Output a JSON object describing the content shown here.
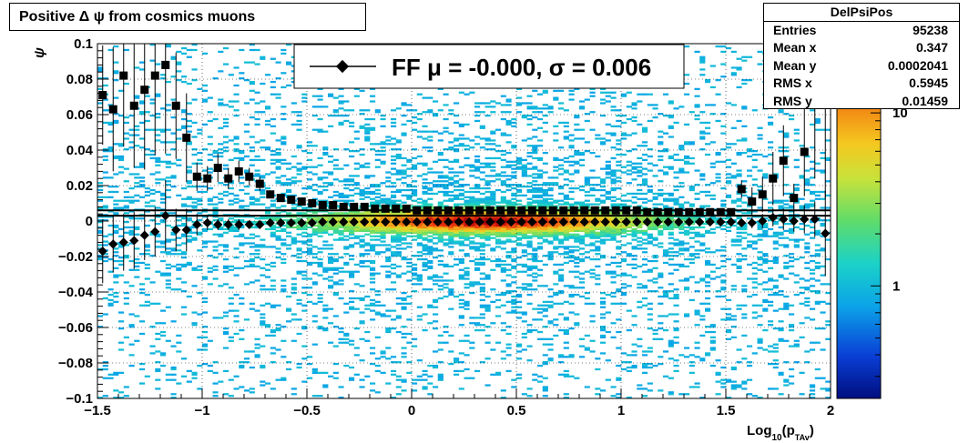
{
  "chart_data": {
    "type": "heatmap",
    "title": "Positive Δ ψ from cosmics muons",
    "xlabel_main": "Log",
    "xlabel_sub1": "10",
    "xlabel_p": "(p",
    "xlabel_sub2": "TAv",
    "xlabel_end": ")",
    "ylabel": "ψ",
    "xlim": [
      -1.5,
      2.0
    ],
    "ylim": [
      -0.1,
      0.1
    ],
    "x_ticks": [
      "−1.5",
      "−1",
      "−0.5",
      "0",
      "0.5",
      "1",
      "1.5",
      "2"
    ],
    "x_tick_values": [
      -1.5,
      -1.0,
      -0.5,
      0.0,
      0.5,
      1.0,
      1.5,
      2.0
    ],
    "y_ticks": [
      "−0.1",
      "−0.08",
      "−0.06",
      "−0.04",
      "−0.02",
      "0",
      "0.02",
      "0.04",
      "0.06",
      "0.08",
      "0.1"
    ],
    "y_tick_values": [
      -0.1,
      -0.08,
      -0.06,
      -0.04,
      -0.02,
      0.0,
      0.02,
      0.04,
      0.06,
      0.08,
      0.1
    ],
    "z_scale": "log",
    "z_ticks": [
      "1",
      "10"
    ],
    "z_tick_values": [
      1,
      10
    ],
    "grid": true,
    "legend": {
      "entry_text": "FF μ = -0.000, σ =   0.006",
      "placement": "top-center"
    },
    "stats": {
      "name": "DelPsiPos",
      "rows": [
        {
          "label": "Entries",
          "value": "95238"
        },
        {
          "label": "Mean x",
          "value": "0.347"
        },
        {
          "label": "Mean y",
          "value": "0.0002041"
        },
        {
          "label": "RMS x",
          "value": "0.5945"
        },
        {
          "label": "RMS y",
          "value": "0.01459"
        }
      ]
    },
    "series": [
      {
        "marker": "diamond",
        "x": [
          -1.475,
          -1.425,
          -1.375,
          -1.325,
          -1.275,
          -1.225,
          -1.175,
          -1.125,
          -1.075,
          -1.025,
          -0.975,
          -0.925,
          -0.875,
          -0.825,
          -0.775,
          -0.725,
          -0.675,
          -0.625,
          -0.575,
          -0.525,
          -0.475,
          -0.425,
          -0.375,
          -0.325,
          -0.275,
          -0.225,
          -0.175,
          -0.125,
          -0.075,
          -0.025,
          0.025,
          0.075,
          0.125,
          0.175,
          0.225,
          0.275,
          0.325,
          0.375,
          0.425,
          0.475,
          0.525,
          0.575,
          0.625,
          0.675,
          0.725,
          0.775,
          0.825,
          0.875,
          0.925,
          0.975,
          1.025,
          1.075,
          1.125,
          1.175,
          1.225,
          1.275,
          1.325,
          1.375,
          1.425,
          1.475,
          1.525,
          1.575,
          1.625,
          1.675,
          1.725,
          1.775,
          1.825,
          1.875,
          1.925,
          1.975
        ],
        "y": [
          -0.017,
          -0.013,
          -0.012,
          -0.011,
          -0.008,
          -0.006,
          0.003,
          -0.005,
          -0.005,
          -0.002,
          -0.001,
          -0.002,
          -0.002,
          -0.002,
          -0.002,
          -0.002,
          -0.001,
          -0.001,
          -0.001,
          -0.001,
          -0.001,
          -0.0005,
          -0.0005,
          -0.0005,
          -0.0005,
          -0.0005,
          -0.0005,
          -0.0005,
          -0.0005,
          -0.0005,
          -0.0005,
          -0.0005,
          -0.0005,
          -0.0005,
          -0.0005,
          -0.0005,
          -0.0005,
          -0.0005,
          -0.0005,
          -0.0005,
          -0.0005,
          -0.0005,
          -0.0005,
          -0.0005,
          -0.0005,
          -0.0005,
          -0.0005,
          -0.0005,
          -0.0005,
          -0.0005,
          -0.0005,
          -0.0005,
          -0.0005,
          -0.0005,
          -0.0005,
          -0.0005,
          -0.0005,
          -0.0005,
          -0.0005,
          -0.0005,
          -0.0005,
          -0.001,
          -0.001,
          0.0,
          0.002,
          0.001,
          0.0,
          0.001,
          0.001,
          -0.007
        ],
        "err": [
          0.018,
          0.016,
          0.016,
          0.016,
          0.014,
          0.014,
          0.02,
          0.012,
          0.012,
          0.006,
          0.004,
          0.003,
          0.003,
          0.003,
          0.002,
          0.002,
          0.001,
          0.001,
          0.001,
          0.001,
          0.001,
          0.001,
          0.001,
          0.001,
          0.001,
          0.001,
          0.001,
          0.001,
          0.001,
          0.001,
          0.001,
          0.001,
          0.001,
          0.001,
          0.001,
          0.001,
          0.001,
          0.001,
          0.001,
          0.001,
          0.001,
          0.001,
          0.001,
          0.001,
          0.001,
          0.001,
          0.001,
          0.001,
          0.001,
          0.001,
          0.001,
          0.001,
          0.001,
          0.001,
          0.001,
          0.001,
          0.001,
          0.001,
          0.001,
          0.001,
          0.001,
          0.002,
          0.003,
          0.004,
          0.005,
          0.006,
          0.006,
          0.008,
          0.01,
          0.024
        ]
      },
      {
        "marker": "square",
        "x": [
          -1.475,
          -1.425,
          -1.375,
          -1.325,
          -1.275,
          -1.225,
          -1.175,
          -1.125,
          -1.075,
          -1.025,
          -0.975,
          -0.925,
          -0.875,
          -0.825,
          -0.775,
          -0.725,
          -0.675,
          -0.625,
          -0.575,
          -0.525,
          -0.475,
          -0.425,
          -0.375,
          -0.325,
          -0.275,
          -0.225,
          -0.175,
          -0.125,
          -0.075,
          -0.025,
          0.025,
          0.075,
          0.125,
          0.175,
          0.225,
          0.275,
          0.325,
          0.375,
          0.425,
          0.475,
          0.525,
          0.575,
          0.625,
          0.675,
          0.725,
          0.775,
          0.825,
          0.875,
          0.925,
          0.975,
          1.025,
          1.075,
          1.125,
          1.175,
          1.225,
          1.275,
          1.325,
          1.375,
          1.425,
          1.475,
          1.525,
          1.575,
          1.625,
          1.675,
          1.725,
          1.775,
          1.825,
          1.875,
          1.925,
          1.975
        ],
        "y": [
          0.071,
          0.063,
          0.082,
          0.065,
          0.074,
          0.082,
          0.088,
          0.065,
          0.047,
          0.025,
          0.024,
          0.03,
          0.024,
          0.028,
          0.025,
          0.021,
          0.015,
          0.013,
          0.012,
          0.011,
          0.01,
          0.009,
          0.009,
          0.008,
          0.008,
          0.008,
          0.007,
          0.007,
          0.007,
          0.007,
          0.006,
          0.006,
          0.006,
          0.006,
          0.006,
          0.006,
          0.006,
          0.006,
          0.006,
          0.006,
          0.006,
          0.006,
          0.006,
          0.006,
          0.006,
          0.006,
          0.006,
          0.006,
          0.006,
          0.006,
          0.006,
          0.006,
          0.005,
          0.005,
          0.005,
          0.005,
          0.005,
          0.005,
          0.005,
          0.005,
          0.005,
          0.018,
          0.011,
          0.015,
          0.024,
          0.034,
          0.013,
          0.039,
          0.069,
          0.068
        ],
        "err": [
          0.028,
          0.035,
          0.04,
          0.035,
          0.045,
          0.045,
          0.05,
          0.03,
          0.025,
          0.008,
          0.007,
          0.008,
          0.006,
          0.006,
          0.005,
          0.004,
          0.002,
          0.002,
          0.002,
          0.001,
          0.001,
          0.001,
          0.001,
          0.001,
          0.001,
          0.001,
          0.001,
          0.001,
          0.001,
          0.001,
          0.001,
          0.001,
          0.001,
          0.001,
          0.001,
          0.001,
          0.001,
          0.001,
          0.001,
          0.001,
          0.001,
          0.001,
          0.001,
          0.001,
          0.001,
          0.001,
          0.001,
          0.001,
          0.001,
          0.001,
          0.001,
          0.001,
          0.001,
          0.001,
          0.001,
          0.001,
          0.001,
          0.001,
          0.001,
          0.001,
          0.001,
          0.005,
          0.008,
          0.01,
          0.015,
          0.02,
          0.008,
          0.025,
          0.045,
          0.055
        ]
      }
    ],
    "reference_lines_y": [
      0.006,
      0.003
    ]
  }
}
